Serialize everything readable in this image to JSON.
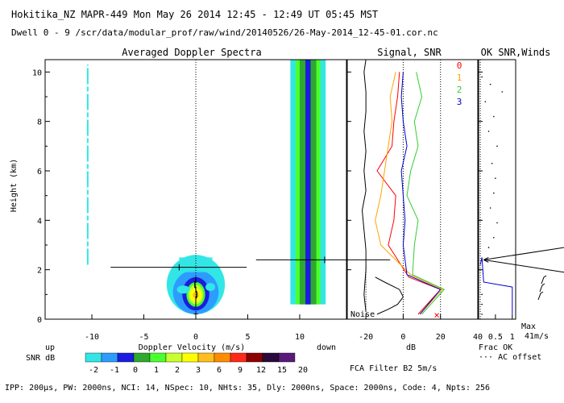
{
  "header": {
    "line1": "Hokitika_NZ  MAPR-449  Mon May 26 2014 12:45 - 12:49 UT 05:45 MST",
    "line2": "Dwell  0 - 9   /scr/data/modular_prof/raw/wind/20140526/26-May-2014_12-45-01.cor.nc"
  },
  "footer": {
    "params": "IPP: 200μs,  PW: 2000ns,  NCI:  14,  NSpec: 10, NHts: 35,  Dly: 2000ns,  Space: 2000ns,  Code: 4,  Npts: 256",
    "fca": "FCA Filter B2  5m/s"
  },
  "colors": {
    "snr": [
      "#33e6e6",
      "#2d9cff",
      "#1c1ce0",
      "#2ea82e",
      "#49ff2e",
      "#c8ff2e",
      "#ffff00",
      "#ffbe1e",
      "#ff8c00",
      "#ff2a1a",
      "#8b0000",
      "#2a0a3a",
      "#5a1a7a"
    ],
    "beams": [
      "#ff0000",
      "#ffa500",
      "#33cc33",
      "#0000cc"
    ]
  },
  "chart_data": [
    {
      "type": "heatmap",
      "title": "Averaged Doppler Spectra",
      "xlabel": "Doppler Velocity (m/s)",
      "ylabel": "Height (km)",
      "xlim": [
        -14.5,
        14.5
      ],
      "ylim": [
        0,
        10.5
      ],
      "xticks": [
        -10,
        -5,
        0,
        5,
        10
      ],
      "yticks": [
        0,
        2,
        4,
        6,
        8,
        10
      ],
      "side_labels": {
        "left": "up",
        "right": "down"
      },
      "colorbar": {
        "label": "SNR dB",
        "ticks": [
          "-2",
          "-1",
          "0",
          "1",
          "2",
          "3",
          "6",
          "9",
          "12",
          "15",
          "20"
        ]
      },
      "features": [
        {
          "name": "clutter-band-left",
          "velocity": -10.4,
          "height_range": [
            2.2,
            10.3
          ],
          "snr_class": "-2"
        },
        {
          "name": "clutter-band-right",
          "velocity": 10.8,
          "height_range": [
            0.6,
            10.5
          ],
          "snr_class": "2"
        },
        {
          "name": "main-echo",
          "velocity": 0,
          "height_range": [
            0.2,
            2.6
          ],
          "peak_snr_class": "6"
        }
      ],
      "mean_velocity": [
        {
          "height": 0.6,
          "v": 0.0
        },
        {
          "height": 0.8,
          "v": 0.0
        },
        {
          "height": 1.0,
          "v": 0.1
        },
        {
          "height": 1.2,
          "v": 0.0
        },
        {
          "height": 1.4,
          "v": -0.1
        },
        {
          "height": 1.6,
          "v": 0.0
        },
        {
          "height": 2.1,
          "v": -1.6
        }
      ],
      "spectral_width_line": {
        "height": 2.1,
        "from": -8.2,
        "to": 4.9
      }
    },
    {
      "type": "line",
      "title": "Signal, SNR",
      "xlabel": "dB",
      "xlim": [
        -30,
        40
      ],
      "ylim": [
        0,
        10.5
      ],
      "xticks": [
        -20,
        0,
        20,
        40
      ],
      "noise_label": "Noise",
      "legend": [
        "0",
        "1",
        "2",
        "3"
      ],
      "series": [
        {
          "name": "noise",
          "color": "#000000",
          "points": [
            [
              -20,
              0.3
            ],
            [
              -21,
              1.0
            ],
            [
              -20,
              2.0
            ],
            [
              -20,
              2.8
            ],
            [
              -21,
              3.6
            ],
            [
              -22,
              4.4
            ],
            [
              -20,
              5.2
            ],
            [
              -21,
              6.0
            ],
            [
              -20,
              6.8
            ],
            [
              -21,
              7.6
            ],
            [
              -20,
              8.4
            ],
            [
              -20,
              9.2
            ],
            [
              -21,
              10.0
            ],
            [
              -20,
              10.5
            ]
          ]
        },
        {
          "name": "signal",
          "color": "#000000",
          "points": [
            [
              -14,
              0.2
            ],
            [
              -8,
              0.4
            ],
            [
              -3,
              0.6
            ],
            [
              0,
              0.9
            ],
            [
              -2,
              1.2
            ],
            [
              -10,
              1.5
            ],
            [
              -15,
              1.7
            ]
          ]
        },
        {
          "name": "0",
          "color": "#ff0000",
          "points": [
            [
              8,
              0.2
            ],
            [
              20,
              1.2
            ],
            [
              3,
              1.7
            ],
            [
              -8,
              3.0
            ],
            [
              -5,
              4.0
            ],
            [
              -4,
              5.0
            ],
            [
              -14,
              6.0
            ],
            [
              -6,
              7.0
            ],
            [
              -5,
              8.0
            ],
            [
              -3,
              9.0
            ],
            [
              -2,
              10.0
            ]
          ]
        },
        {
          "name": "1",
          "color": "#ffa500",
          "points": [
            [
              9,
              0.2
            ],
            [
              21,
              1.2
            ],
            [
              4,
              1.8
            ],
            [
              -12,
              3.0
            ],
            [
              -15,
              4.0
            ],
            [
              -12,
              5.0
            ],
            [
              -10,
              6.0
            ],
            [
              -8,
              7.0
            ],
            [
              -6,
              8.0
            ],
            [
              -7,
              9.0
            ],
            [
              -4,
              10.0
            ]
          ]
        },
        {
          "name": "2",
          "color": "#33cc33",
          "points": [
            [
              10,
              0.2
            ],
            [
              22,
              1.2
            ],
            [
              5,
              1.8
            ],
            [
              6,
              3.0
            ],
            [
              8,
              4.0
            ],
            [
              2,
              5.0
            ],
            [
              4,
              6.0
            ],
            [
              8,
              7.0
            ],
            [
              6,
              8.0
            ],
            [
              10,
              9.0
            ],
            [
              7,
              10.0
            ]
          ]
        },
        {
          "name": "3",
          "color": "#0000cc",
          "points": [
            [
              9,
              0.2
            ],
            [
              20,
              1.2
            ],
            [
              2,
              1.8
            ],
            [
              0,
              3.0
            ],
            [
              1,
              4.0
            ],
            [
              0,
              5.0
            ],
            [
              -1,
              6.0
            ],
            [
              2,
              7.0
            ],
            [
              0,
              8.0
            ],
            [
              -1,
              9.0
            ],
            [
              0,
              10.0
            ]
          ]
        }
      ]
    },
    {
      "type": "scatter",
      "title": "OK SNR,Winds",
      "xlabel": "Frac OK",
      "xlim": [
        0,
        1.1
      ],
      "ylim": [
        0,
        10.5
      ],
      "xticks": [
        "0.5",
        "1"
      ],
      "secondary_legend": "AC offset",
      "max_label": "Max",
      "max_value": "41m/s",
      "frac_ok": [
        [
          1.0,
          0.2
        ],
        [
          1.0,
          0.6
        ],
        [
          1.0,
          1.0
        ],
        [
          1.0,
          1.3
        ],
        [
          0.15,
          1.5
        ],
        [
          0.1,
          2.5
        ],
        [
          0.05,
          2.2
        ]
      ]
    }
  ]
}
